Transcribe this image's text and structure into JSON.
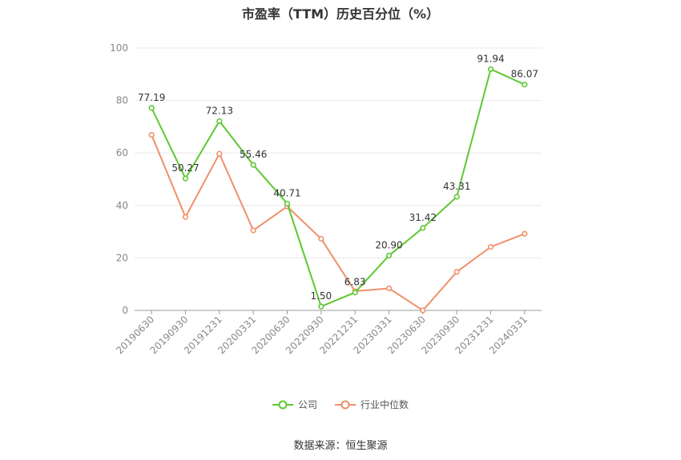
{
  "title": "市盈率（TTM）历史百分位（%）",
  "source": "数据来源：恒生聚源",
  "colors": {
    "company": "#5ec831",
    "industry": "#f0906a",
    "grid": "#e8e8ee",
    "axis": "#888888"
  },
  "chart_data": {
    "type": "line",
    "title": "市盈率（TTM）历史百分位（%）",
    "xlabel": "",
    "ylabel": "",
    "ylim": [
      0,
      100
    ],
    "yticks": [
      0,
      20,
      40,
      60,
      80,
      100
    ],
    "grid": true,
    "legend_position": "bottom",
    "categories": [
      "20190630",
      "20190930",
      "20191231",
      "20200331",
      "20200630",
      "20220930",
      "20221231",
      "20230331",
      "20230630",
      "20230930",
      "20231231",
      "20240331"
    ],
    "series": [
      {
        "name": "公司",
        "color": "#5ec831",
        "values": [
          77.19,
          50.27,
          72.13,
          55.46,
          40.71,
          1.5,
          6.83,
          20.9,
          31.42,
          43.31,
          91.94,
          86.07
        ],
        "labels": [
          "77.19",
          "50.27",
          "72.13",
          "55.46",
          "40.71",
          "1.50",
          "6.83",
          "20.90",
          "31.42",
          "43.31",
          "91.94",
          "86.07"
        ]
      },
      {
        "name": "行业中位数",
        "color": "#f0906a",
        "values": [
          66.9,
          35.6,
          59.7,
          30.5,
          39.6,
          27.3,
          7.3,
          8.4,
          0.0,
          14.7,
          24.2,
          29.2
        ]
      }
    ]
  }
}
